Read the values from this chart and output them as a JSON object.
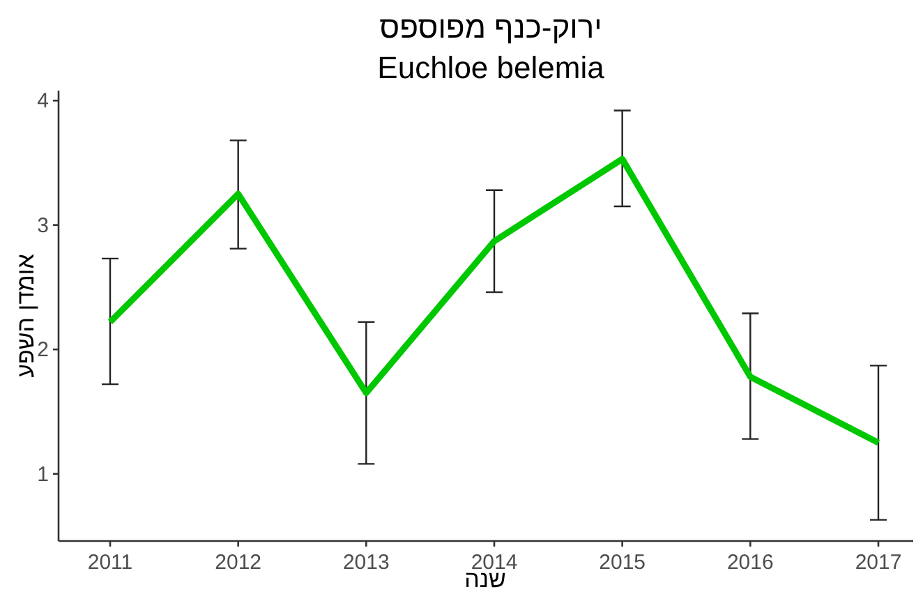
{
  "chart_data": {
    "type": "line",
    "title": "ירוק-כנף מפוספס",
    "subtitle": "Euchloe belemia",
    "xlabel": "שנה",
    "ylabel": "אומדן השפע",
    "categories": [
      "2011",
      "2012",
      "2013",
      "2014",
      "2015",
      "2016",
      "2017"
    ],
    "series": [
      {
        "color": "#00c800",
        "values": [
          2.22,
          3.25,
          1.65,
          2.87,
          3.53,
          1.78,
          1.25
        ],
        "errors": [
          [
            1.72,
            2.73
          ],
          [
            2.81,
            3.68
          ],
          [
            1.08,
            2.22
          ],
          [
            2.46,
            3.28
          ],
          [
            3.15,
            3.92
          ],
          [
            1.28,
            2.29
          ],
          [
            0.63,
            1.87
          ]
        ]
      }
    ],
    "ylim": [
      0.46,
      4.08
    ],
    "yticks": [
      1,
      2,
      3,
      4
    ],
    "grid": false,
    "marker": "none",
    "line_style": "solid"
  }
}
